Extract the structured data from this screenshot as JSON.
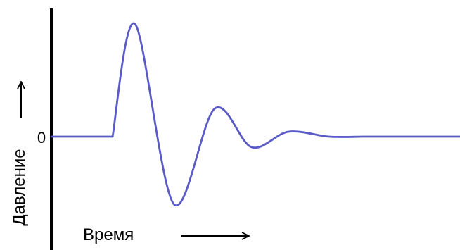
{
  "chart_data": {
    "type": "line",
    "title": "",
    "xlabel": "Время",
    "ylabel": "Давление",
    "ytick_labels": [
      {
        "value": 0,
        "label": "0"
      }
    ],
    "xlim": [
      0,
      10
    ],
    "ylim": [
      -1,
      1.7
    ],
    "grid": false,
    "legend": "none",
    "series": [
      {
        "color": "#5b5bc8",
        "x": [
          0,
          1.5,
          2.05,
          3.0,
          4.0,
          4.9,
          5.8,
          6.8,
          7.6,
          10
        ],
        "y": [
          0,
          0,
          1.6,
          -0.96,
          0.4,
          -0.15,
          0.07,
          0,
          0,
          0
        ]
      }
    ]
  }
}
